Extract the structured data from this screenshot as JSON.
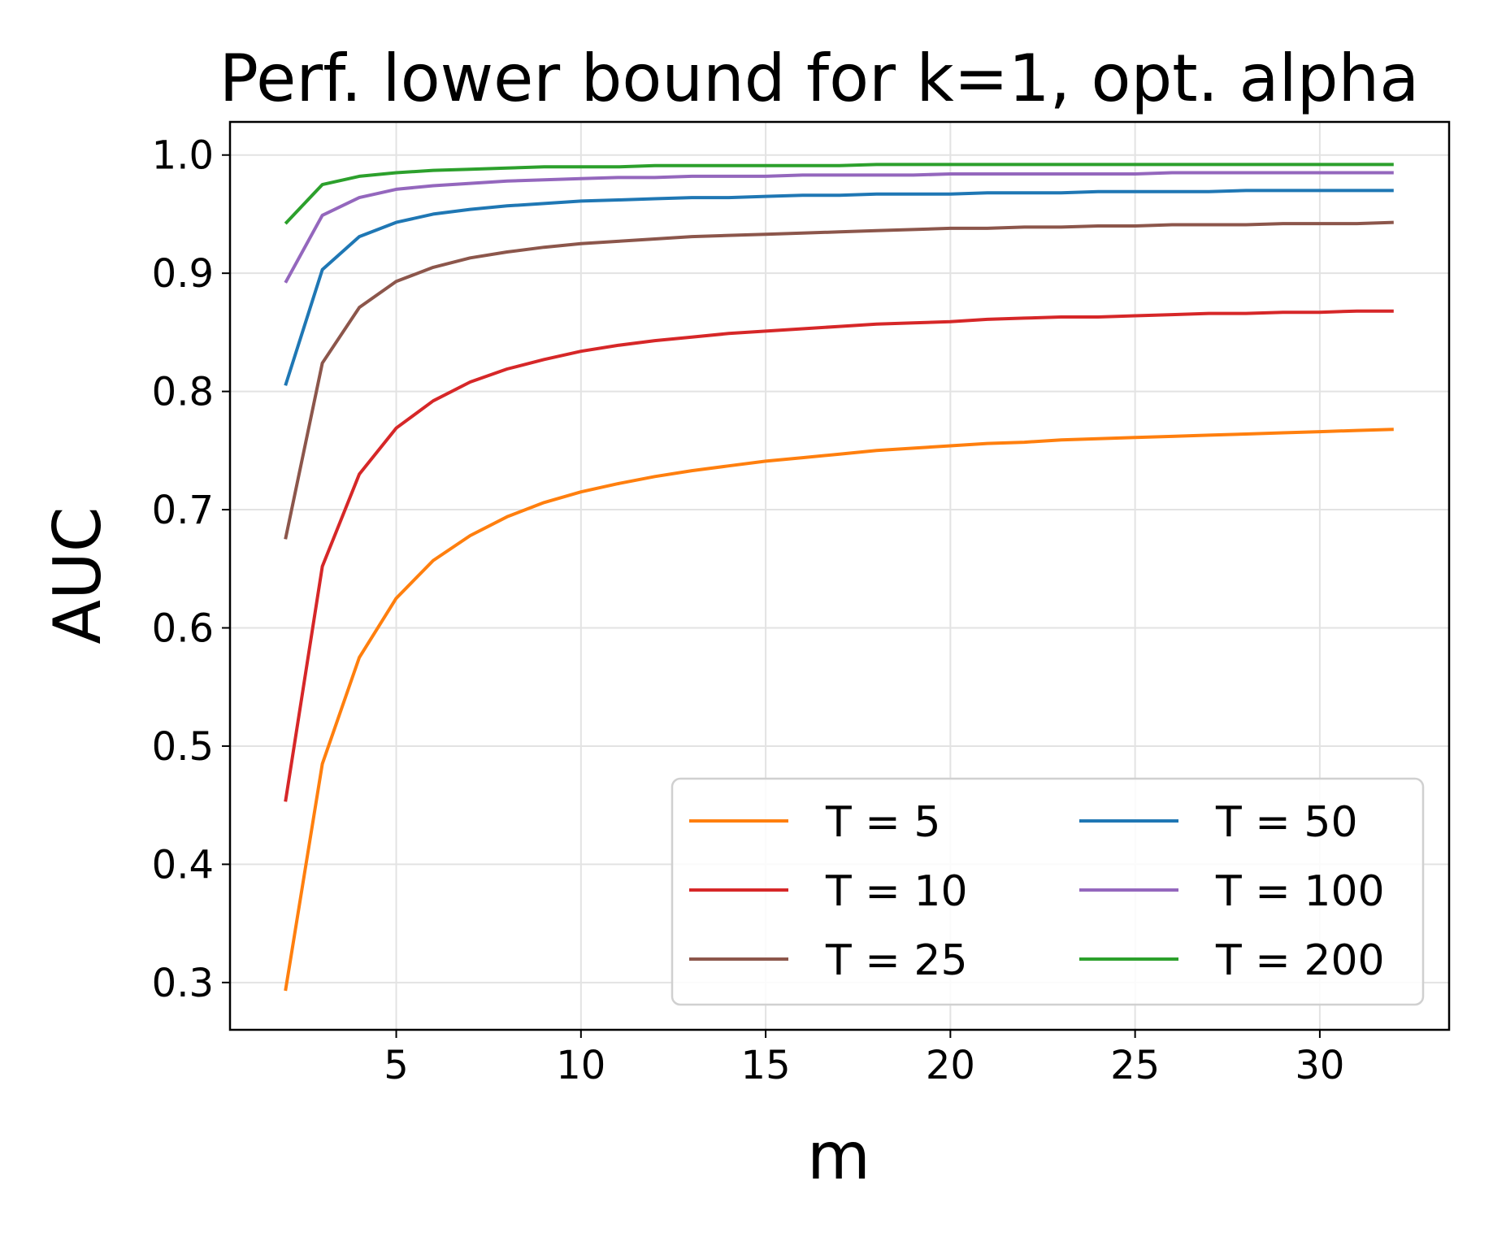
{
  "chart_data": {
    "type": "line",
    "title": "Perf. lower bound for k=1, opt. alpha",
    "xlabel": "m",
    "ylabel": "AUC",
    "xlim": [
      0.5,
      33.5
    ],
    "ylim": [
      0.26,
      1.028
    ],
    "xticks": [
      5,
      10,
      15,
      20,
      25,
      30
    ],
    "yticks": [
      0.3,
      0.4,
      0.5,
      0.6,
      0.7,
      0.8,
      0.9,
      1.0
    ],
    "xtick_labels": [
      "5",
      "10",
      "15",
      "20",
      "25",
      "30"
    ],
    "ytick_labels": [
      "0.3",
      "0.4",
      "0.5",
      "0.6",
      "0.7",
      "0.8",
      "0.9",
      "1.0"
    ],
    "grid": true,
    "legend_location": "lower-right",
    "legend_columns": 2,
    "x": [
      2,
      3,
      4,
      5,
      6,
      7,
      8,
      9,
      10,
      11,
      12,
      13,
      14,
      15,
      16,
      17,
      18,
      19,
      20,
      21,
      22,
      23,
      24,
      25,
      26,
      27,
      28,
      29,
      30,
      31,
      32
    ],
    "series": [
      {
        "name": "T = 5",
        "color": "#ff7f0e",
        "values": [
          0.293,
          0.485,
          0.575,
          0.625,
          0.657,
          0.678,
          0.694,
          0.706,
          0.715,
          0.722,
          0.728,
          0.733,
          0.737,
          0.741,
          0.744,
          0.747,
          0.75,
          0.752,
          0.754,
          0.756,
          0.757,
          0.759,
          0.76,
          0.761,
          0.762,
          0.763,
          0.764,
          0.765,
          0.766,
          0.767,
          0.768
        ]
      },
      {
        "name": "T = 10",
        "color": "#d62728",
        "values": [
          0.453,
          0.652,
          0.73,
          0.769,
          0.792,
          0.808,
          0.819,
          0.827,
          0.834,
          0.839,
          0.843,
          0.846,
          0.849,
          0.851,
          0.853,
          0.855,
          0.857,
          0.858,
          0.859,
          0.861,
          0.862,
          0.863,
          0.863,
          0.864,
          0.865,
          0.866,
          0.866,
          0.867,
          0.867,
          0.868,
          0.868
        ]
      },
      {
        "name": "T = 25",
        "color": "#8c564b",
        "values": [
          0.675,
          0.824,
          0.871,
          0.893,
          0.905,
          0.913,
          0.918,
          0.922,
          0.925,
          0.927,
          0.929,
          0.931,
          0.932,
          0.933,
          0.934,
          0.935,
          0.936,
          0.937,
          0.938,
          0.938,
          0.939,
          0.939,
          0.94,
          0.94,
          0.941,
          0.941,
          0.941,
          0.942,
          0.942,
          0.942,
          0.943
        ]
      },
      {
        "name": "T = 50",
        "color": "#1f77b4",
        "values": [
          0.805,
          0.903,
          0.931,
          0.943,
          0.95,
          0.954,
          0.957,
          0.959,
          0.961,
          0.962,
          0.963,
          0.964,
          0.964,
          0.965,
          0.966,
          0.966,
          0.967,
          0.967,
          0.967,
          0.968,
          0.968,
          0.968,
          0.969,
          0.969,
          0.969,
          0.969,
          0.97,
          0.97,
          0.97,
          0.97,
          0.97
        ]
      },
      {
        "name": "T = 100",
        "color": "#9467bd",
        "values": [
          0.892,
          0.949,
          0.964,
          0.971,
          0.974,
          0.976,
          0.978,
          0.979,
          0.98,
          0.981,
          0.981,
          0.982,
          0.982,
          0.982,
          0.983,
          0.983,
          0.983,
          0.983,
          0.984,
          0.984,
          0.984,
          0.984,
          0.984,
          0.984,
          0.985,
          0.985,
          0.985,
          0.985,
          0.985,
          0.985,
          0.985
        ]
      },
      {
        "name": "T = 200",
        "color": "#2ca02c",
        "values": [
          0.942,
          0.975,
          0.982,
          0.985,
          0.987,
          0.988,
          0.989,
          0.99,
          0.99,
          0.99,
          0.991,
          0.991,
          0.991,
          0.991,
          0.991,
          0.991,
          0.992,
          0.992,
          0.992,
          0.992,
          0.992,
          0.992,
          0.992,
          0.992,
          0.992,
          0.992,
          0.992,
          0.992,
          0.992,
          0.992,
          0.992
        ]
      }
    ]
  }
}
